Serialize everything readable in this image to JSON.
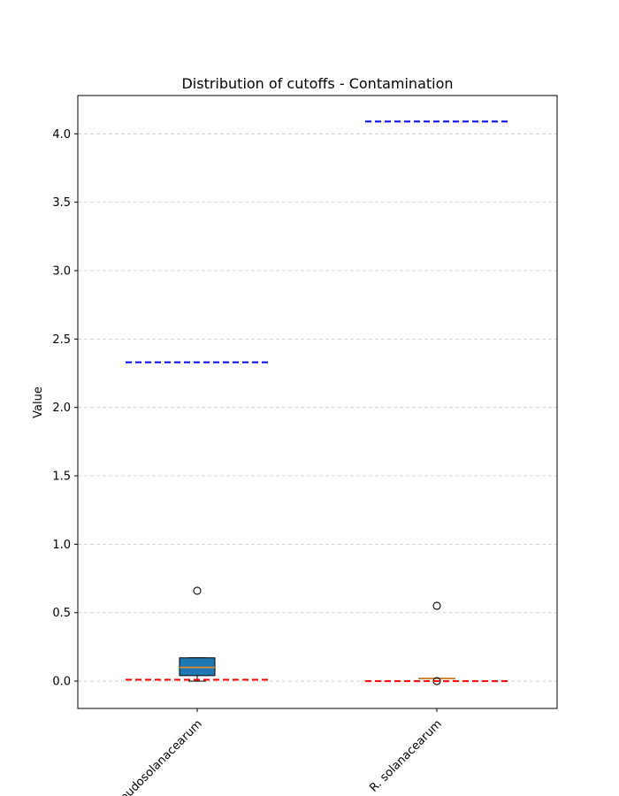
{
  "chart_data": {
    "type": "box",
    "title": "Distribution of cutoffs - Contamination",
    "xlabel": "",
    "ylabel": "Value",
    "ylim": [
      -0.2,
      4.28
    ],
    "yticks": [
      0.0,
      0.5,
      1.0,
      1.5,
      2.0,
      2.5,
      3.0,
      3.5,
      4.0
    ],
    "ytick_labels": [
      "0.0",
      "0.5",
      "1.0",
      "1.5",
      "2.0",
      "2.5",
      "3.0",
      "3.5",
      "4.0"
    ],
    "grid": "y-dashed",
    "categories": [
      "R. pseudosolanacearum",
      "R. solanacearum"
    ],
    "boxes": [
      {
        "name": "R. pseudosolanacearum",
        "whisker_low": 0.0,
        "q1": 0.04,
        "median": 0.1,
        "q3": 0.17,
        "whisker_high": 0.17,
        "outliers": [
          0.66
        ],
        "box_color": "#1f77b4",
        "median_color": "#e08a33",
        "upper_cutoff": 2.33,
        "lower_cutoff": 0.01
      },
      {
        "name": "R. solanacearum",
        "whisker_low": 0.02,
        "q1": 0.02,
        "median": 0.02,
        "q3": 0.02,
        "whisker_high": 0.02,
        "outliers": [
          0.55,
          0.0
        ],
        "box_color": "#1f77b4",
        "median_color": "#e08a33",
        "upper_cutoff": 4.09,
        "lower_cutoff": 0.0
      }
    ],
    "cutoff_colors": {
      "upper": "#0000ff",
      "lower": "#ff0000"
    }
  }
}
